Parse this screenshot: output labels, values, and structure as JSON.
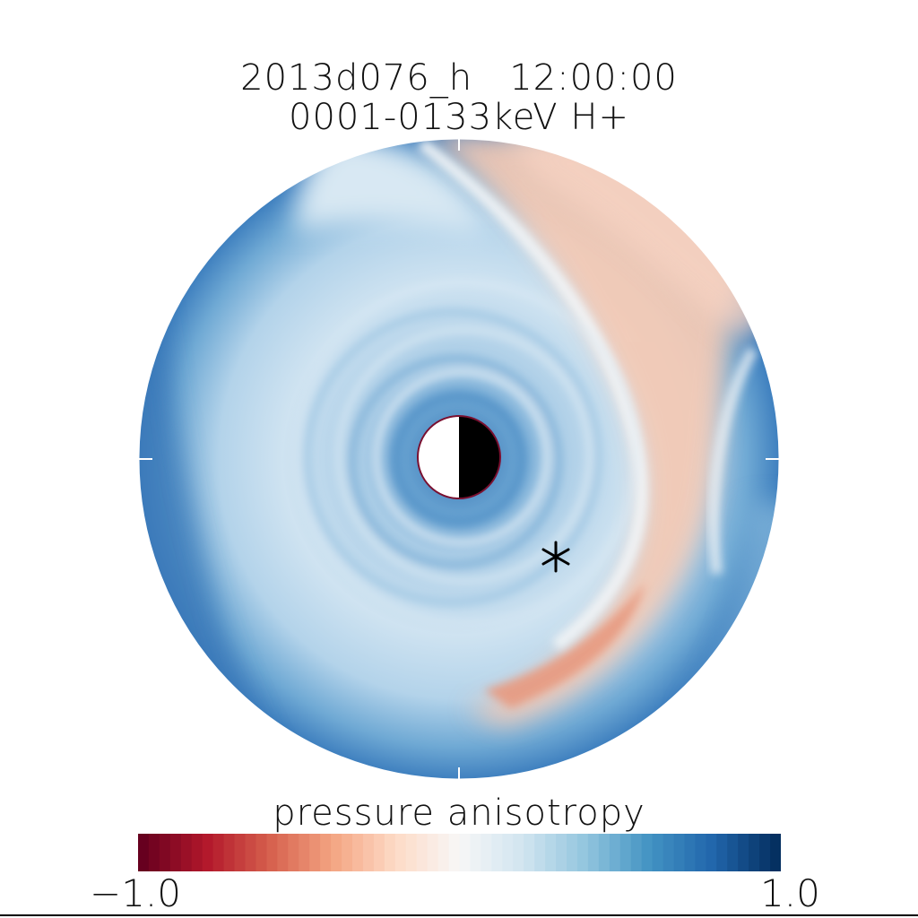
{
  "title": {
    "line1": "2013d076_h   12:00:00",
    "line2": "0001-0133keV H+"
  },
  "map": {
    "variable": "pressure anisotropy",
    "earth_symbol": "day-night-earth-icon",
    "satellite_marker": "asterisk-marker-icon"
  },
  "colorbar": {
    "label": "pressure anisotropy",
    "min_label": "−1.0",
    "max_label": "1.0",
    "min": -1.0,
    "max": 1.0,
    "colors": [
      "#67001f",
      "#b2182b",
      "#d6604d",
      "#f4a582",
      "#fddbc7",
      "#f7f7f7",
      "#d1e5f0",
      "#92c5de",
      "#4393c3",
      "#2166ac",
      "#053061"
    ]
  }
}
